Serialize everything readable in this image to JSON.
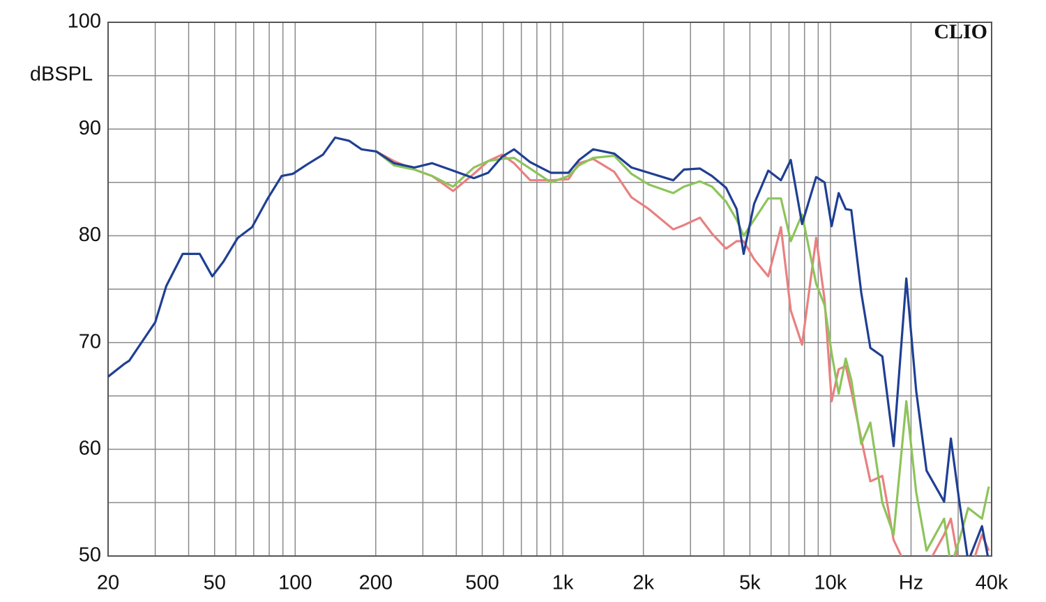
{
  "chart_data": {
    "type": "line",
    "watermark": "CLIO",
    "y_label": "dBSPL",
    "x_scale": "log",
    "grid": true,
    "xlim": [
      20,
      40000
    ],
    "ylim": [
      50,
      100
    ],
    "xticks": [
      20,
      50,
      100,
      200,
      500,
      {
        "value": 1000,
        "label": "1k"
      },
      {
        "value": 2000,
        "label": "2k"
      },
      {
        "value": 5000,
        "label": "5k"
      },
      {
        "value": 10000,
        "label": "10k"
      },
      {
        "value": 20000,
        "label": "Hz"
      },
      {
        "value": 40000,
        "label": "40k"
      }
    ],
    "x_minor_grid": [
      30,
      40,
      60,
      70,
      80,
      90,
      300,
      400,
      600,
      700,
      800,
      900,
      3000,
      4000,
      6000,
      7000,
      8000,
      9000,
      30000
    ],
    "yticks": [
      50,
      60,
      70,
      80,
      90,
      100
    ],
    "y_minor_grid": [
      55,
      65,
      75,
      85,
      95
    ],
    "x": [
      20,
      23,
      24,
      30,
      33,
      38,
      44,
      49,
      54,
      61,
      69,
      79,
      89,
      98,
      111,
      127,
      141,
      159,
      177,
      201,
      234,
      279,
      325,
      389,
      465,
      526,
      593,
      657,
      755,
      903,
      1050,
      1150,
      1298,
      1556,
      1805,
      2097,
      2587,
      2833,
      3253,
      3608,
      4074,
      4461,
      4737,
      5188,
      5856,
      6532,
      7108,
      7831,
      8842,
      9507,
      10100,
      10730,
      11400,
      11960,
      13030,
      14090,
      15620,
      17220,
      19200,
      20900,
      22860,
      26580,
      28180,
      30300,
      32700,
      36820,
      39060
    ],
    "series": [
      {
        "color": "#e98080",
        "values": [
          null,
          null,
          null,
          null,
          null,
          null,
          null,
          null,
          null,
          null,
          null,
          null,
          null,
          null,
          null,
          null,
          null,
          null,
          null,
          87.9,
          87.0,
          86.2,
          85.6,
          84.2,
          85.8,
          87.0,
          87.6,
          86.8,
          85.2,
          85.2,
          85.3,
          86.8,
          87.2,
          86.0,
          83.6,
          82.5,
          80.6,
          81.0,
          81.7,
          80.2,
          78.8,
          79.5,
          79.5,
          77.8,
          76.2,
          80.8,
          73.0,
          69.8,
          79.8,
          74.0,
          64.5,
          67.5,
          67.8,
          65.5,
          61.0,
          57.0,
          57.5,
          51.5,
          49.0,
          49.0,
          49.0,
          52.0,
          53.5,
          49.0,
          48.0,
          52.0,
          50.5
        ]
      },
      {
        "color": "#8cc45a",
        "values": [
          null,
          null,
          null,
          null,
          null,
          null,
          null,
          null,
          null,
          null,
          null,
          null,
          null,
          null,
          null,
          null,
          null,
          null,
          null,
          87.9,
          86.6,
          86.2,
          85.6,
          84.6,
          86.4,
          87.0,
          87.2,
          87.3,
          86.3,
          85.0,
          85.6,
          86.6,
          87.3,
          87.5,
          85.8,
          84.8,
          84.0,
          84.6,
          85.1,
          84.6,
          83.2,
          81.5,
          80.0,
          81.5,
          83.5,
          83.5,
          79.5,
          82.0,
          75.5,
          73.5,
          69.0,
          65.2,
          68.5,
          66.5,
          60.5,
          62.5,
          55.0,
          52.0,
          64.5,
          56.0,
          50.5,
          53.5,
          49.0,
          51.5,
          54.5,
          53.5,
          56.5
        ]
      },
      {
        "color": "#1f3f93",
        "values": [
          66.8,
          68.0,
          68.3,
          71.9,
          75.3,
          78.3,
          78.3,
          76.2,
          77.6,
          79.8,
          80.8,
          83.5,
          85.6,
          85.8,
          86.7,
          87.6,
          89.2,
          88.9,
          88.1,
          87.9,
          86.8,
          86.4,
          86.8,
          86.1,
          85.4,
          85.9,
          87.4,
          88.1,
          86.9,
          85.9,
          85.9,
          87.1,
          88.1,
          87.7,
          86.4,
          85.9,
          85.2,
          86.2,
          86.3,
          85.6,
          84.5,
          82.5,
          78.3,
          83.0,
          86.1,
          85.2,
          87.1,
          81.1,
          85.5,
          85.0,
          80.9,
          84.0,
          82.5,
          82.4,
          74.7,
          69.5,
          68.7,
          60.3,
          76.0,
          65.5,
          58.0,
          55.1,
          61.0,
          55.1,
          49.5,
          52.8,
          49.5
        ]
      }
    ]
  }
}
